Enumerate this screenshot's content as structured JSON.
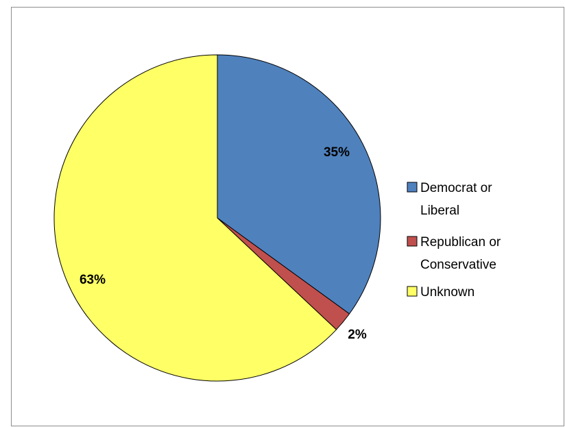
{
  "chart_data": {
    "type": "pie",
    "slices": [
      {
        "name": "Democrat or Liberal",
        "value": 35,
        "label": "35%",
        "color": "#4f81bd",
        "legend_lines": [
          "Democrat or",
          "Liberal"
        ]
      },
      {
        "name": "Republican or Conservative",
        "value": 2,
        "label": "2%",
        "color": "#c0504d",
        "legend_lines": [
          "Republican or",
          "Conservative"
        ]
      },
      {
        "name": "Unknown",
        "value": 63,
        "label": "63%",
        "color": "#ffff66",
        "legend_lines": [
          "Unknown"
        ]
      }
    ],
    "legend_position": "right",
    "start_angle": "top",
    "direction": "clockwise"
  }
}
